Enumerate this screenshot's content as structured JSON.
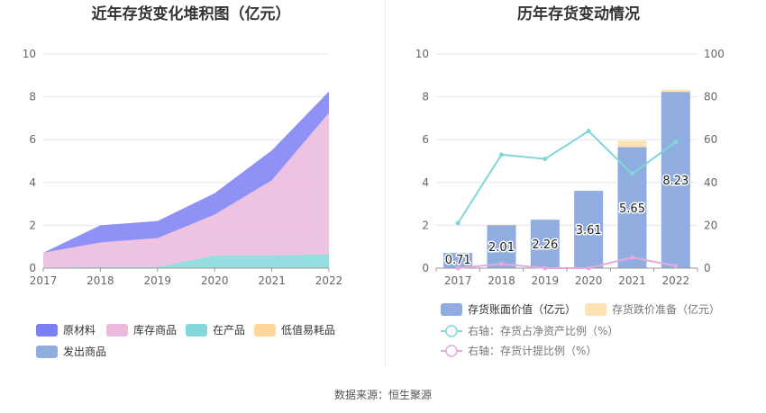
{
  "colors": {
    "raw_materials": "#7b7ff2",
    "stock_goods": "#ebb9dc",
    "wip": "#82d7d9",
    "consumables": "#fdd89a",
    "shipped_goods": "#8fadde",
    "bar_value": "#8fadde",
    "bar_reserve": "#fde2b3",
    "line_net_assets": "#80d6d9",
    "line_provision": "#e6a9dd",
    "grid": "#e6e6e6",
    "axis_text": "#666666"
  },
  "footer": {
    "source": "数据来源：恒生聚源"
  },
  "chart_data": [
    {
      "type": "area",
      "title": "近年存货变化堆积图（亿元）",
      "x": [
        "2017",
        "2018",
        "2019",
        "2020",
        "2021",
        "2022"
      ],
      "ylim": [
        0,
        10
      ],
      "yticks": [
        "0",
        "2",
        "4",
        "6",
        "8",
        "10"
      ],
      "grid": true,
      "legend_position": "bottom",
      "series": [
        {
          "name": "原材料",
          "color_key": "raw_materials",
          "values": [
            0.0,
            0.8,
            0.8,
            1.0,
            1.4,
            1.0
          ]
        },
        {
          "name": "库存商品",
          "color_key": "stock_goods",
          "values": [
            0.7,
            1.15,
            1.35,
            1.9,
            3.5,
            6.6
          ]
        },
        {
          "name": "在产品",
          "color_key": "wip",
          "values": [
            0.02,
            0.05,
            0.05,
            0.6,
            0.6,
            0.65
          ]
        },
        {
          "name": "低值易耗品",
          "color_key": "consumables",
          "values": [
            0.0,
            0.0,
            0.0,
            0.0,
            0.0,
            0.0
          ]
        },
        {
          "name": "发出商品",
          "color_key": "shipped_goods",
          "values": [
            0.0,
            0.0,
            0.0,
            0.0,
            0.0,
            0.0
          ]
        }
      ],
      "stack_order": [
        "在产品",
        "库存商品",
        "原材料",
        "低值易耗品",
        "发出商品"
      ]
    },
    {
      "type": "bar",
      "title": "历年存货变动情况",
      "x": [
        "2017",
        "2018",
        "2019",
        "2020",
        "2021",
        "2022"
      ],
      "ylim": [
        0,
        10
      ],
      "yticks": [
        "0",
        "2",
        "4",
        "6",
        "8",
        "10"
      ],
      "y2lim": [
        0,
        100
      ],
      "y2ticks": [
        "0",
        "20",
        "40",
        "60",
        "80",
        "100"
      ],
      "grid": true,
      "legend_position": "bottom",
      "bars": [
        {
          "name": "存货账面价值（亿元）",
          "color_key": "bar_value",
          "values": [
            0.71,
            2.01,
            2.26,
            3.61,
            5.65,
            8.23
          ],
          "labels": [
            "0.71",
            "2.01",
            "2.26",
            "3.61",
            "5.65",
            "8.23"
          ]
        },
        {
          "name": "存货跌价准备（亿元）",
          "color_key": "bar_reserve",
          "values": [
            0.0,
            0.03,
            0.0,
            0.0,
            0.3,
            0.1
          ]
        }
      ],
      "lines": [
        {
          "name": "右轴：存货占净资产比例（%）",
          "color_key": "line_net_assets",
          "axis": "right",
          "values": [
            21,
            53,
            51,
            64,
            44,
            59
          ]
        },
        {
          "name": "右轴：存货计提比例（%）",
          "color_key": "line_provision",
          "axis": "right",
          "values": [
            0,
            2,
            0,
            0,
            5,
            1
          ]
        }
      ]
    }
  ]
}
